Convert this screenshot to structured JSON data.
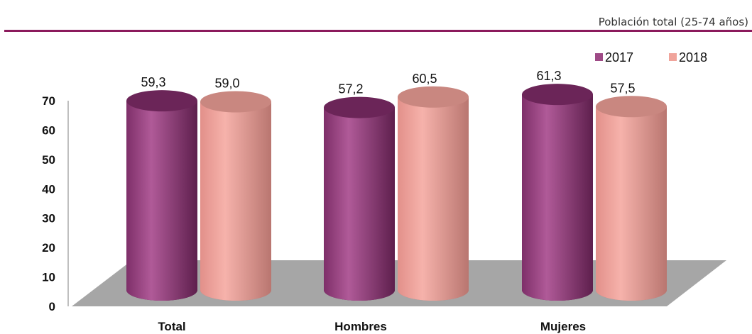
{
  "header": {
    "subtitle": "Población total (25-74 años)",
    "rule_color": "#8b1a5c"
  },
  "chart_data": {
    "type": "bar",
    "style": "3d-cylinder",
    "title": "",
    "xlabel": "",
    "ylabel": "",
    "categories": [
      "Total",
      "Hombres",
      "Mujeres"
    ],
    "series": [
      {
        "name": "2017",
        "values": [
          59.3,
          57.2,
          61.3
        ],
        "color": "#9e4a86",
        "label_text": [
          "59,3",
          "57,2",
          "61,3"
        ]
      },
      {
        "name": "2018",
        "values": [
          59.0,
          60.5,
          57.5
        ],
        "color": "#f0a49b",
        "label_text": [
          "59,0",
          "60,5",
          "57,5"
        ]
      }
    ],
    "ylim": [
      0,
      70
    ],
    "yticks": [
      "0",
      "10",
      "20",
      "30",
      "40",
      "50",
      "60",
      "70"
    ],
    "grid": false,
    "legend_position": "top-right",
    "floor_color": "#a6a6a6"
  }
}
